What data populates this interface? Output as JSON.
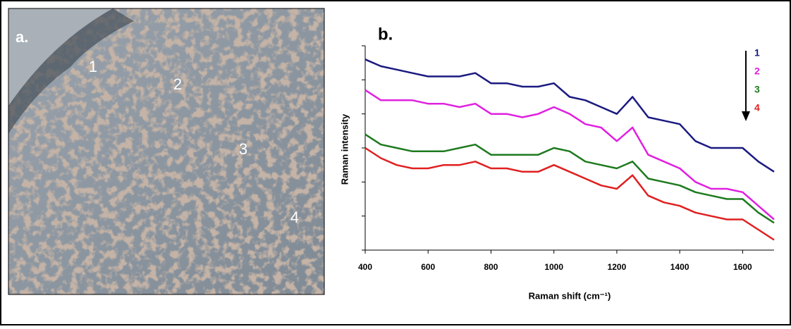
{
  "panel_a": {
    "label": "a.",
    "points": [
      "1",
      "2",
      "3",
      "4"
    ]
  },
  "chart_data": {
    "type": "line",
    "panel_label": "b.",
    "x_label": "Raman shift (cm⁻¹)",
    "y_label": "Raman intensity",
    "x": [
      400,
      450,
      500,
      550,
      600,
      650,
      700,
      750,
      800,
      850,
      900,
      950,
      1000,
      1050,
      1100,
      1150,
      1200,
      1250,
      1300,
      1350,
      1400,
      1450,
      1500,
      1550,
      1600,
      1650,
      1700
    ],
    "series": [
      {
        "name": "1",
        "color": "#1a1a80",
        "values": [
          5.6,
          5.4,
          5.3,
          5.2,
          5.1,
          5.1,
          5.1,
          5.2,
          4.9,
          4.9,
          4.8,
          4.8,
          4.9,
          4.5,
          4.4,
          4.2,
          4.0,
          4.5,
          3.9,
          3.8,
          3.7,
          3.2,
          3.0,
          3.0,
          3.0,
          2.6,
          2.3
        ]
      },
      {
        "name": "2",
        "color": "#e020e0",
        "values": [
          4.7,
          4.4,
          4.4,
          4.4,
          4.3,
          4.3,
          4.2,
          4.3,
          4.0,
          4.0,
          3.9,
          4.0,
          4.2,
          4.0,
          3.7,
          3.6,
          3.2,
          3.6,
          2.8,
          2.6,
          2.4,
          2.0,
          1.8,
          1.8,
          1.7,
          1.3,
          0.9
        ]
      },
      {
        "name": "3",
        "color": "#1e7a1e",
        "values": [
          3.4,
          3.1,
          3.0,
          2.9,
          2.9,
          2.9,
          3.0,
          3.1,
          2.8,
          2.8,
          2.8,
          2.8,
          3.0,
          2.9,
          2.6,
          2.5,
          2.4,
          2.6,
          2.1,
          2.0,
          1.9,
          1.7,
          1.6,
          1.5,
          1.5,
          1.1,
          0.8
        ]
      },
      {
        "name": "4",
        "color": "#e02020",
        "values": [
          3.0,
          2.7,
          2.5,
          2.4,
          2.4,
          2.5,
          2.5,
          2.6,
          2.4,
          2.4,
          2.3,
          2.3,
          2.5,
          2.3,
          2.1,
          1.9,
          1.8,
          2.2,
          1.6,
          1.4,
          1.3,
          1.1,
          1.0,
          0.9,
          0.9,
          0.6,
          0.3
        ]
      }
    ],
    "xlim": [
      400,
      1700
    ],
    "xticks": [
      400,
      600,
      800,
      1000,
      1200,
      1400,
      1600
    ],
    "ylim": [
      0,
      6
    ],
    "yticks": [
      0,
      1,
      2,
      3,
      4,
      5,
      6
    ]
  }
}
